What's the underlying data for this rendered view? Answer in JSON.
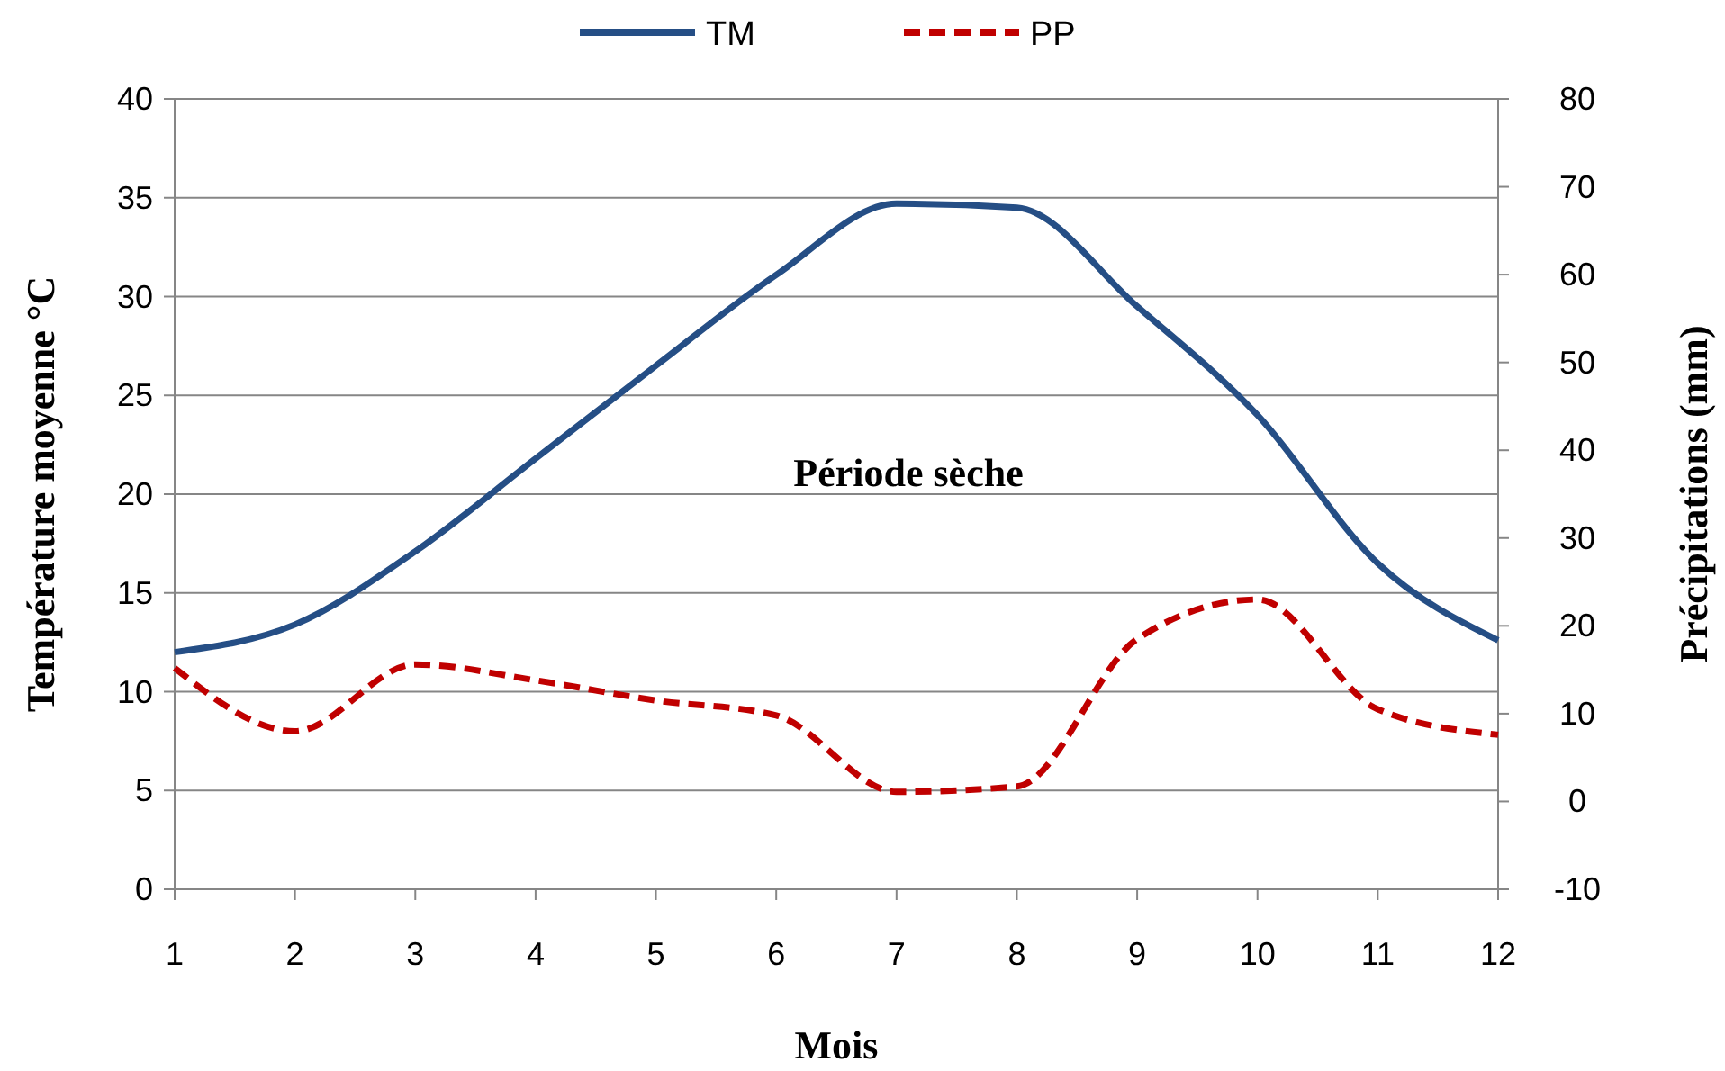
{
  "chart_data": {
    "type": "line",
    "xlabel": "Mois",
    "ylabel": "Température moyenne °C",
    "y2label": "Précipitations  (mm)",
    "x": [
      1,
      2,
      3,
      4,
      5,
      6,
      7,
      8,
      9,
      10,
      11,
      12
    ],
    "xlim": [
      1,
      12
    ],
    "xticks": [
      1,
      2,
      3,
      4,
      5,
      6,
      7,
      8,
      9,
      10,
      11,
      12
    ],
    "ylim": [
      0,
      40
    ],
    "yticks": [
      0,
      5,
      10,
      15,
      20,
      25,
      30,
      35,
      40
    ],
    "y2lim": [
      -10,
      80
    ],
    "y2ticks": [
      -10,
      0,
      10,
      20,
      30,
      40,
      50,
      60,
      70,
      80
    ],
    "grid": "y",
    "legend": "top",
    "marker": "none",
    "annotations": [
      "Période sèche"
    ],
    "series": [
      {
        "name": "TM",
        "color": "#254e85",
        "line_style": "solid",
        "values": [
          12.0,
          13.4,
          17.1,
          21.8,
          26.5,
          31.1,
          34.7,
          34.5,
          29.5,
          24.0,
          16.5,
          12.6
        ]
      },
      {
        "name": "PP",
        "color": "#c00000",
        "line_style": "dashed",
        "axis": "y2",
        "values": [
          15.2,
          8.0,
          15.6,
          13.8,
          11.5,
          9.8,
          1.1,
          1.7,
          18.5,
          23.0,
          10.5,
          7.6
        ]
      }
    ]
  }
}
